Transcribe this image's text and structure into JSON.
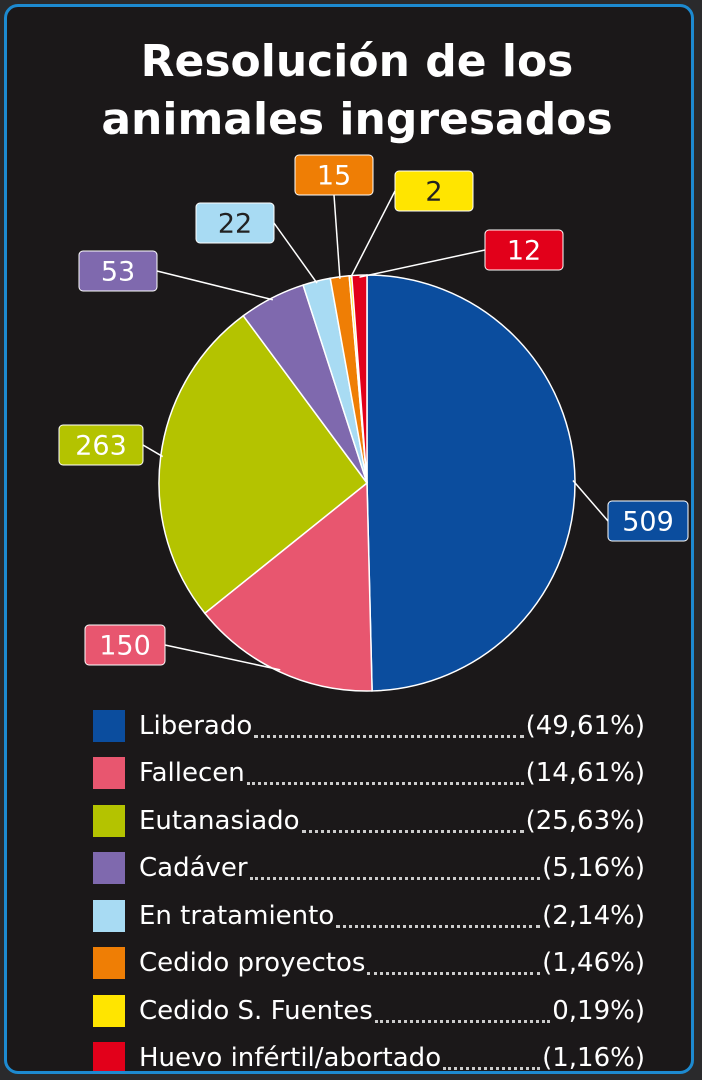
{
  "chart_data": {
    "type": "pie",
    "title": "Resolución de los animales ingresados",
    "categories": [
      "Liberado",
      "Fallecen",
      "Eutanasiado",
      "Cadáver",
      "En tratamiento",
      "Cedido proyectos",
      "Cedido S. Fuentes",
      "Huevo infértil/abortado"
    ],
    "values": [
      509,
      150,
      263,
      53,
      22,
      15,
      2,
      12
    ],
    "legend_labels": [
      "(49,61%)",
      "(14,61%)",
      "(25,63%)",
      "(5,16%)",
      "(2,14%)",
      "(1,46%)",
      "0,19%)",
      "(1,16%)"
    ],
    "colors": [
      "#0b4d9e",
      "#e8566f",
      "#b4c300",
      "#7f69ae",
      "#a8dbf3",
      "#ef7e05",
      "#ffe500",
      "#e2001a"
    ],
    "legend": "bottom"
  }
}
